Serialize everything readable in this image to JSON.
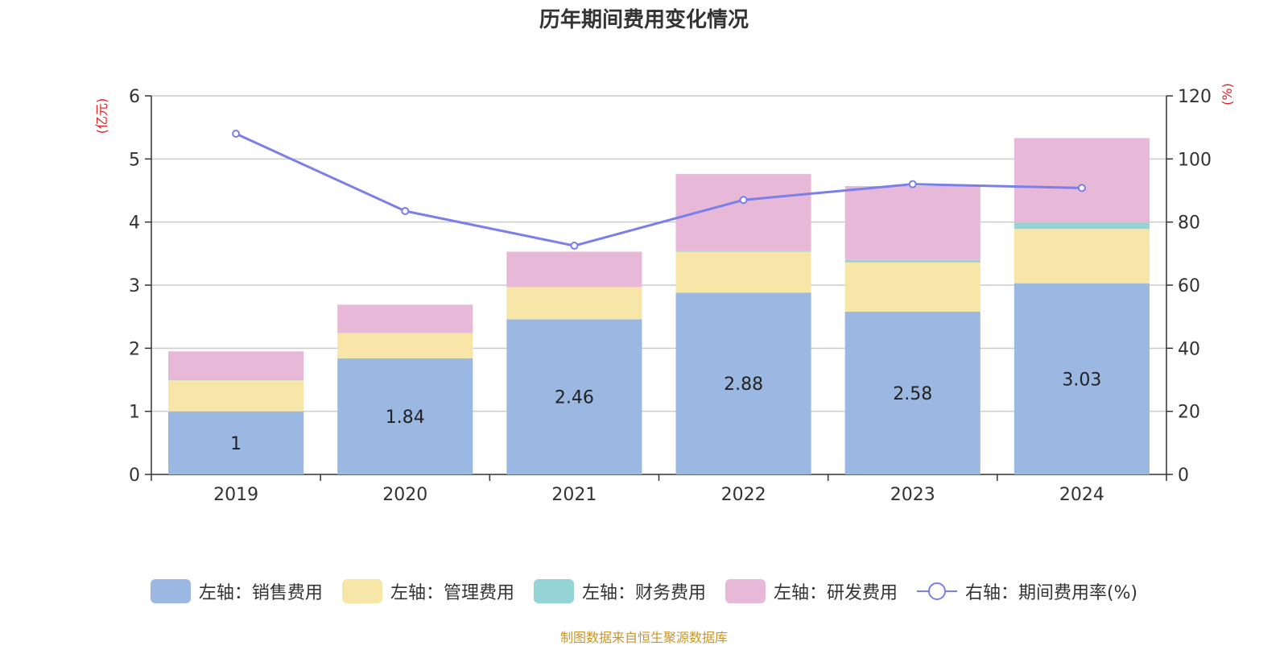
{
  "chart_data": {
    "type": "bar",
    "title": "历年期间费用变化情况",
    "categories": [
      "2019",
      "2020",
      "2021",
      "2022",
      "2023",
      "2024"
    ],
    "left_axis": {
      "unit_label": "(亿元)",
      "ylim": [
        0,
        6
      ],
      "ticks": [
        "0",
        "1",
        "2",
        "3",
        "4",
        "5",
        "6"
      ]
    },
    "right_axis": {
      "unit_label": "(%)",
      "ylim": [
        0,
        120
      ],
      "ticks": [
        "0",
        "20",
        "40",
        "60",
        "80",
        "100",
        "120"
      ]
    },
    "series": [
      {
        "name": "左轴：销售费用",
        "type": "bar",
        "stack": true,
        "axis": "left",
        "color": "#9bb8e2",
        "values": [
          1.0,
          1.84,
          2.46,
          2.88,
          2.58,
          3.03
        ],
        "labels": [
          "1",
          "1.84",
          "2.46",
          "2.88",
          "2.58",
          "3.03"
        ]
      },
      {
        "name": "左轴：管理费用",
        "type": "bar",
        "stack": true,
        "axis": "left",
        "color": "#f7e6a8",
        "values": [
          0.49,
          0.4,
          0.51,
          0.65,
          0.78,
          0.86
        ]
      },
      {
        "name": "左轴：财务费用",
        "type": "bar",
        "stack": true,
        "axis": "left",
        "color": "#95d4d6",
        "values": [
          0.01,
          0.0,
          0.0,
          0.01,
          0.04,
          0.1
        ]
      },
      {
        "name": "左轴：研发费用",
        "type": "bar",
        "stack": true,
        "axis": "left",
        "color": "#e7b8d8",
        "values": [
          0.45,
          0.45,
          0.56,
          1.22,
          1.17,
          1.34
        ]
      },
      {
        "name": "右轴：期间费用率(%)",
        "type": "line",
        "axis": "right",
        "color": "#7b7fe8",
        "values": [
          108,
          83.5,
          72.5,
          87,
          92,
          90.8
        ]
      }
    ],
    "legend_position": "bottom",
    "grid": true
  },
  "source_note": "制图数据来自恒生聚源数据库"
}
